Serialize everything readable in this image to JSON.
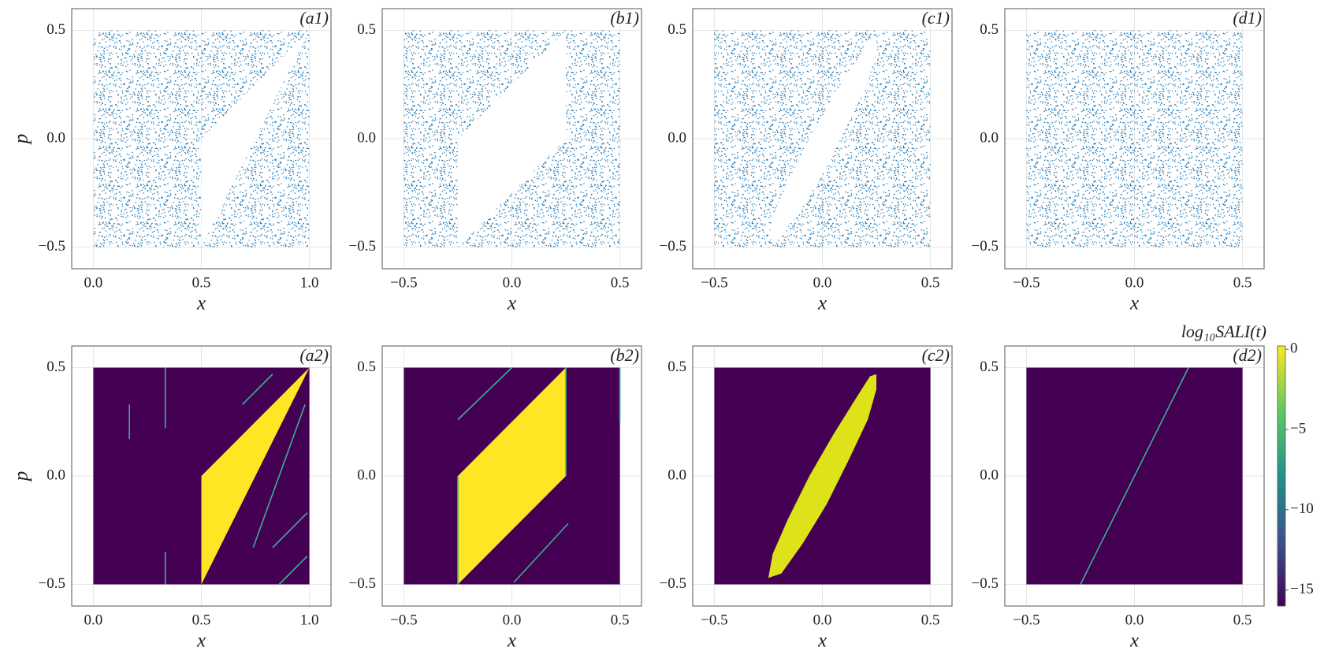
{
  "chart_data": [
    {
      "type": "scatter",
      "label": "(a1)",
      "ylabel": "p",
      "xlabel": "x",
      "xlim": [
        -0.1,
        1.1
      ],
      "ylim": [
        -0.6,
        0.6
      ],
      "xticks": [
        {
          "value": 0,
          "label": "0.0"
        },
        {
          "value": 0.5,
          "label": "0.5"
        },
        {
          "value": 1,
          "label": "1.0"
        }
      ],
      "yticks": [
        {
          "value": -0.5,
          "label": "−0.5"
        },
        {
          "value": 0,
          "label": "0.0"
        },
        {
          "value": 0.5,
          "label": "0.5"
        }
      ],
      "grid": true,
      "color": "#1f77b4",
      "domain": {
        "x": [
          0,
          1
        ],
        "p": [
          -0.5,
          0.5
        ]
      },
      "region": [
        [
          0.5,
          -0.5
        ],
        [
          0.5,
          0
        ],
        [
          1,
          0.5
        ]
      ]
    },
    {
      "type": "scatter",
      "label": "(b1)",
      "xlabel": "x",
      "xlim": [
        -0.6,
        0.6
      ],
      "ylim": [
        -0.6,
        0.6
      ],
      "xticks": [
        {
          "value": -0.5,
          "label": "−0.5"
        },
        {
          "value": 0,
          "label": "0.0"
        },
        {
          "value": 0.5,
          "label": "0.5"
        }
      ],
      "yticks": [
        {
          "value": -0.5,
          "label": "−0.5"
        },
        {
          "value": 0,
          "label": "0.0"
        },
        {
          "value": 0.5,
          "label": "0.5"
        }
      ],
      "grid": true,
      "color": "#1f77b4",
      "domain": {
        "x": [
          -0.5,
          0.5
        ],
        "p": [
          -0.5,
          0.5
        ]
      },
      "region": [
        [
          -0.25,
          -0.5
        ],
        [
          -0.25,
          0
        ],
        [
          0.25,
          0.5
        ],
        [
          0.25,
          0
        ]
      ]
    },
    {
      "type": "scatter",
      "label": "(c1)",
      "xlabel": "x",
      "xlim": [
        -0.6,
        0.6
      ],
      "ylim": [
        -0.6,
        0.6
      ],
      "xticks": [
        {
          "value": -0.5,
          "label": "−0.5"
        },
        {
          "value": 0,
          "label": "0.0"
        },
        {
          "value": 0.5,
          "label": "0.5"
        }
      ],
      "yticks": [
        {
          "value": -0.5,
          "label": "−0.5"
        },
        {
          "value": 0,
          "label": "0.0"
        },
        {
          "value": 0.5,
          "label": "0.5"
        }
      ],
      "grid": true,
      "color": "#1f77b4",
      "domain": {
        "x": [
          -0.5,
          0.5
        ],
        "p": [
          -0.5,
          0.5
        ]
      },
      "region": [
        [
          -0.25,
          -0.47
        ],
        [
          -0.23,
          -0.36
        ],
        [
          -0.16,
          -0.2
        ],
        [
          -0.06,
          0
        ],
        [
          0.05,
          0.19
        ],
        [
          0.15,
          0.35
        ],
        [
          0.22,
          0.46
        ],
        [
          0.25,
          0.47
        ],
        [
          0.25,
          0.4
        ],
        [
          0.21,
          0.26
        ],
        [
          0.12,
          0.07
        ],
        [
          0.02,
          -0.13
        ],
        [
          -0.09,
          -0.31
        ],
        [
          -0.19,
          -0.45
        ]
      ]
    },
    {
      "type": "scatter",
      "label": "(d1)",
      "xlabel": "x",
      "xlim": [
        -0.6,
        0.6
      ],
      "ylim": [
        -0.6,
        0.6
      ],
      "xticks": [
        {
          "value": -0.5,
          "label": "−0.5"
        },
        {
          "value": 0,
          "label": "0.0"
        },
        {
          "value": 0.5,
          "label": "0.5"
        }
      ],
      "yticks": [
        {
          "value": -0.5,
          "label": "−0.5"
        },
        {
          "value": 0,
          "label": "0.0"
        },
        {
          "value": 0.5,
          "label": "0.5"
        }
      ],
      "grid": true,
      "color": "#1f77b4",
      "domain": {
        "x": [
          -0.5,
          0.5
        ],
        "p": [
          -0.5,
          0.5
        ]
      }
    },
    {
      "type": "heatmap",
      "label": "(a2)",
      "ylabel": "p",
      "xlabel": "x",
      "xlim": [
        -0.1,
        1.1
      ],
      "ylim": [
        -0.6,
        0.6
      ],
      "xticks": [
        {
          "value": 0,
          "label": "0.0"
        },
        {
          "value": 0.5,
          "label": "0.5"
        },
        {
          "value": 1,
          "label": "1.0"
        }
      ],
      "yticks": [
        {
          "value": -0.5,
          "label": "−0.5"
        },
        {
          "value": 0,
          "label": "0.0"
        },
        {
          "value": 0.5,
          "label": "0.5"
        }
      ],
      "grid": true,
      "color": "#440154",
      "region_color": "#fde725",
      "line_color": "#3bb08f",
      "domain": {
        "x": [
          0,
          1
        ],
        "p": [
          -0.5,
          0.5
        ]
      },
      "region": [
        [
          0.5,
          -0.5
        ],
        [
          0.5,
          0
        ],
        [
          1,
          0.5
        ]
      ],
      "lines": [
        [
          0.333,
          0.22,
          0.333,
          0.5
        ],
        [
          0.333,
          -0.5,
          0.333,
          -0.35
        ],
        [
          0.167,
          0.17,
          0.167,
          0.33
        ],
        [
          0.69,
          0.33,
          0.83,
          0.47
        ],
        [
          0.74,
          -0.33,
          0.98,
          0.33
        ],
        [
          0.83,
          -0.33,
          0.99,
          -0.17
        ],
        [
          0.86,
          -0.5,
          0.99,
          -0.37
        ]
      ]
    },
    {
      "type": "heatmap",
      "label": "(b2)",
      "xlabel": "x",
      "xlim": [
        -0.6,
        0.6
      ],
      "ylim": [
        -0.6,
        0.6
      ],
      "xticks": [
        {
          "value": -0.5,
          "label": "−0.5"
        },
        {
          "value": 0,
          "label": "0.0"
        },
        {
          "value": 0.5,
          "label": "0.5"
        }
      ],
      "yticks": [
        {
          "value": -0.5,
          "label": "−0.5"
        },
        {
          "value": 0,
          "label": "0.0"
        },
        {
          "value": 0.5,
          "label": "0.5"
        }
      ],
      "grid": true,
      "color": "#440154",
      "region_color": "#fde725",
      "line_color": "#3bb08f",
      "domain": {
        "x": [
          -0.5,
          0.5
        ],
        "p": [
          -0.5,
          0.5
        ]
      },
      "region": [
        [
          -0.25,
          -0.5
        ],
        [
          -0.25,
          0
        ],
        [
          0.25,
          0.5
        ],
        [
          0.25,
          0
        ]
      ],
      "lines": [
        [
          -0.25,
          0.26,
          0,
          0.5
        ],
        [
          0.01,
          -0.49,
          0.26,
          -0.22
        ],
        [
          0.5,
          0.25,
          0.5,
          0.5
        ],
        [
          -0.25,
          -0.5,
          -0.25,
          0
        ],
        [
          0.25,
          0,
          0.25,
          0.5
        ]
      ]
    },
    {
      "type": "heatmap",
      "label": "(c2)",
      "xlabel": "x",
      "xlim": [
        -0.6,
        0.6
      ],
      "ylim": [
        -0.6,
        0.6
      ],
      "xticks": [
        {
          "value": -0.5,
          "label": "−0.5"
        },
        {
          "value": 0,
          "label": "0.0"
        },
        {
          "value": 0.5,
          "label": "0.5"
        }
      ],
      "yticks": [
        {
          "value": -0.5,
          "label": "−0.5"
        },
        {
          "value": 0,
          "label": "0.0"
        },
        {
          "value": 0.5,
          "label": "0.5"
        }
      ],
      "grid": true,
      "color": "#440154",
      "region_color": "#dde318",
      "domain": {
        "x": [
          -0.5,
          0.5
        ],
        "p": [
          -0.5,
          0.5
        ]
      },
      "region": [
        [
          -0.25,
          -0.47
        ],
        [
          -0.23,
          -0.36
        ],
        [
          -0.16,
          -0.2
        ],
        [
          -0.06,
          0
        ],
        [
          0.05,
          0.19
        ],
        [
          0.15,
          0.35
        ],
        [
          0.22,
          0.46
        ],
        [
          0.25,
          0.47
        ],
        [
          0.25,
          0.4
        ],
        [
          0.21,
          0.26
        ],
        [
          0.12,
          0.07
        ],
        [
          0.02,
          -0.13
        ],
        [
          -0.09,
          -0.31
        ],
        [
          -0.19,
          -0.45
        ]
      ]
    },
    {
      "type": "heatmap",
      "label": "(d2)",
      "xlabel": "x",
      "xlim": [
        -0.6,
        0.6
      ],
      "ylim": [
        -0.6,
        0.6
      ],
      "xticks": [
        {
          "value": -0.5,
          "label": "−0.5"
        },
        {
          "value": 0,
          "label": "0.0"
        },
        {
          "value": 0.5,
          "label": "0.5"
        }
      ],
      "yticks": [
        {
          "value": -0.5,
          "label": "−0.5"
        },
        {
          "value": 0,
          "label": "0.0"
        },
        {
          "value": 0.5,
          "label": "0.5"
        }
      ],
      "grid": true,
      "color": "#440154",
      "line_color": "#3bb08f",
      "domain": {
        "x": [
          -0.5,
          0.5
        ],
        "p": [
          -0.5,
          0.5
        ]
      },
      "lines": [
        [
          -0.25,
          -0.5,
          0.25,
          0.5
        ]
      ],
      "colorbar": {
        "label": "log₁₀SALI(t)",
        "lim": [
          -16,
          0.2
        ],
        "ticks": [
          0,
          {
            "value": -5,
            "label": "−5"
          },
          {
            "value": -10,
            "label": "−10"
          },
          {
            "value": -15,
            "label": "−15"
          }
        ],
        "colors": [
          "#440154",
          "#3b528b",
          "#21918c",
          "#5ec962",
          "#fde725"
        ]
      }
    }
  ]
}
